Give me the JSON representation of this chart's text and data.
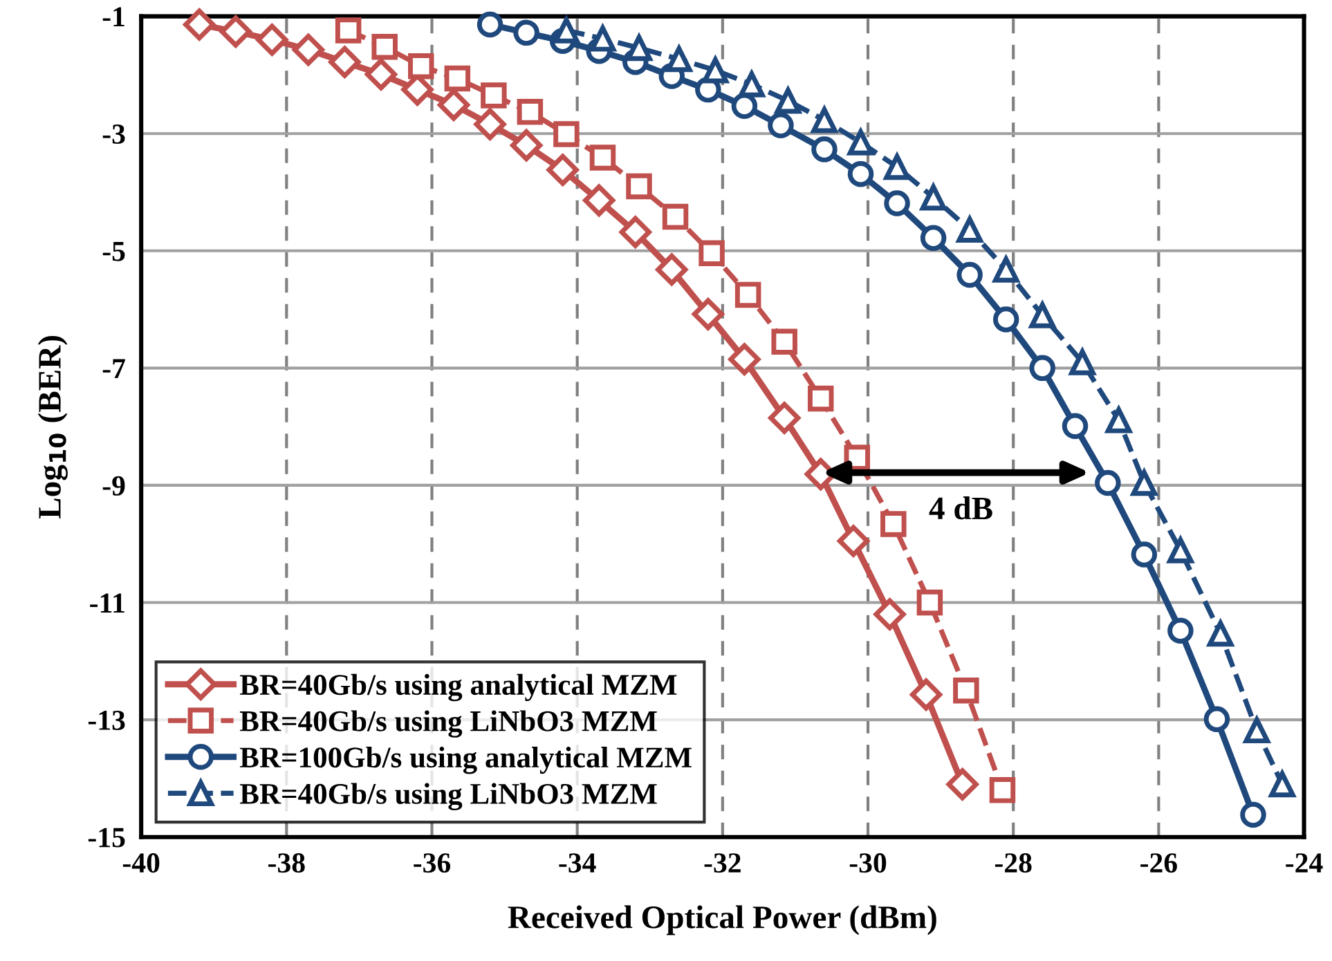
{
  "chart_data": {
    "type": "line",
    "xlabel": "Received Optical Power (dBm)",
    "ylabel": "Log$_{10}$ (BER)",
    "xlim": [
      -40,
      -24
    ],
    "xticks": [
      -40,
      -38,
      -36,
      -34,
      -32,
      -30,
      -28,
      -26,
      -24
    ],
    "ylim": [
      -15,
      -1
    ],
    "yticks": [
      -1,
      -3,
      -5,
      -7,
      -9,
      -11,
      -13,
      -15
    ],
    "grid": true,
    "legend": "bottom left",
    "annotations": [
      "4 dB"
    ],
    "series": [
      {
        "name": "BR=40Gb/s using analytical MZM",
        "color": "#c0504d",
        "marker": "diamond",
        "line_style": "solid",
        "x": [
          -39.2,
          -38.7,
          -38.2,
          -37.7,
          -37.2,
          -36.7,
          -36.2,
          -35.7,
          -35.2,
          -34.7,
          -34.2,
          -33.7,
          -33.2,
          -32.7,
          -32.2,
          -31.7,
          -31.15,
          -30.65,
          -30.2,
          -29.7,
          -29.2,
          -28.7
        ],
        "values": [
          -1.14,
          -1.26,
          -1.4,
          -1.57,
          -1.78,
          -1.99,
          -2.25,
          -2.51,
          -2.84,
          -3.2,
          -3.62,
          -4.14,
          -4.68,
          -5.32,
          -6.08,
          -6.85,
          -7.85,
          -8.81,
          -9.95,
          -11.2,
          -12.57,
          -14.1
        ]
      },
      {
        "name": "BR=40Gb/s using LiNbO3 MZM",
        "color": "#c0504d",
        "marker": "square",
        "line_style": "dashed",
        "x": [
          -37.15,
          -36.65,
          -36.15,
          -35.65,
          -35.15,
          -34.65,
          -34.15,
          -33.65,
          -33.15,
          -32.65,
          -32.15,
          -31.65,
          -31.15,
          -30.65,
          -30.15,
          -29.65,
          -29.15,
          -28.65,
          -28.15
        ],
        "values": [
          -1.24,
          -1.52,
          -1.85,
          -2.06,
          -2.35,
          -2.63,
          -3.01,
          -3.41,
          -3.9,
          -4.42,
          -5.04,
          -5.75,
          -6.55,
          -7.52,
          -8.53,
          -9.66,
          -11.0,
          -12.5,
          -14.2
        ]
      },
      {
        "name": "BR=100Gb/s using analytical MZM",
        "color": "#1f497d",
        "marker": "circle",
        "line_style": "solid",
        "x": [
          -35.2,
          -34.7,
          -34.2,
          -33.7,
          -33.2,
          -32.7,
          -32.2,
          -31.7,
          -31.2,
          -30.6,
          -30.1,
          -29.6,
          -29.1,
          -28.6,
          -28.1,
          -27.6,
          -27.15,
          -26.7,
          -26.2,
          -25.7,
          -25.2,
          -24.7
        ],
        "values": [
          -1.14,
          -1.28,
          -1.42,
          -1.59,
          -1.78,
          -2.02,
          -2.25,
          -2.53,
          -2.86,
          -3.27,
          -3.69,
          -4.19,
          -4.78,
          -5.41,
          -6.17,
          -7.0,
          -7.99,
          -8.96,
          -10.18,
          -11.48,
          -12.99,
          -14.62
        ]
      },
      {
        "name": "BR=40Gb/s using LiNbO3 MZM",
        "color": "#1f497d",
        "marker": "triangle",
        "line_style": "dashed",
        "x": [
          -34.15,
          -33.65,
          -33.15,
          -32.6,
          -32.1,
          -31.6,
          -31.1,
          -30.6,
          -30.1,
          -29.6,
          -29.1,
          -28.6,
          -28.1,
          -27.6,
          -27.05,
          -26.55,
          -26.2,
          -25.7,
          -25.15,
          -24.65,
          -24.3
        ],
        "values": [
          -1.24,
          -1.38,
          -1.54,
          -1.73,
          -1.92,
          -2.16,
          -2.44,
          -2.77,
          -3.15,
          -3.57,
          -4.09,
          -4.64,
          -5.32,
          -6.1,
          -6.9,
          -7.89,
          -8.96,
          -10.11,
          -11.53,
          -13.18,
          -14.1
        ]
      }
    ]
  }
}
